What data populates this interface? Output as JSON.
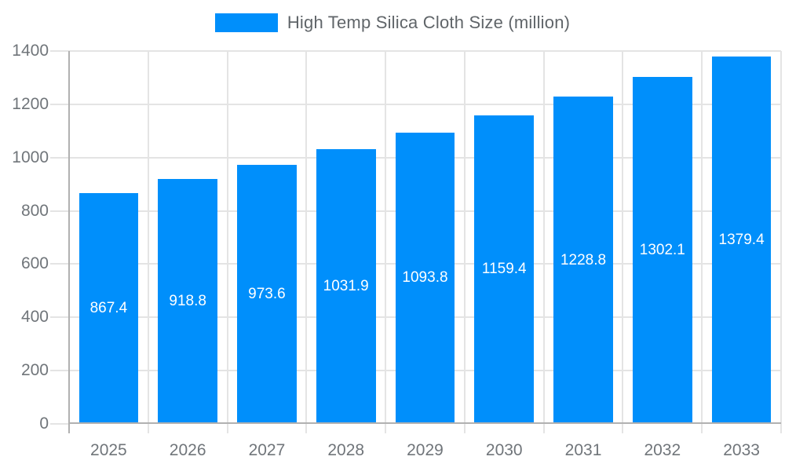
{
  "chart_data": {
    "type": "bar",
    "title": "High Temp Silica Cloth Size (million)",
    "categories": [
      "2025",
      "2026",
      "2027",
      "2028",
      "2029",
      "2030",
      "2031",
      "2032",
      "2033"
    ],
    "values": [
      867.4,
      918.8,
      973.6,
      1031.9,
      1093.8,
      1159.4,
      1228.8,
      1302.1,
      1379.4
    ],
    "data_labels": [
      "867.4",
      "918.8",
      "973.6",
      "1031.9",
      "1093.8",
      "1159.4",
      "1228.8",
      "1302.1",
      "1379.4"
    ],
    "xlabel": "",
    "ylabel": "",
    "ylim": [
      0,
      1400
    ],
    "yticks": [
      0,
      200,
      400,
      600,
      800,
      1000,
      1200,
      1400
    ],
    "grid": "both",
    "legend_position": "top",
    "colors": {
      "bar": "#008FFB",
      "data_label": "#ffffff",
      "axis_text": "#70757a",
      "legend_text": "#606569",
      "grid_line": "#e4e4e4",
      "axis_line": "#b1b1b1",
      "background": "#ffffff"
    }
  }
}
